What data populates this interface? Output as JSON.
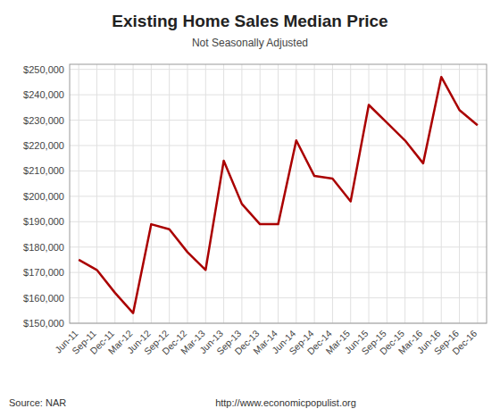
{
  "chart_data": {
    "type": "line",
    "title": "Existing Home Sales Median Price",
    "subtitle": "Not Seasonally Adjusted",
    "annotations": [
      "Source: NAR",
      "http://www.economicpopulist.org"
    ],
    "categories": [
      "Jun-11",
      "Sep-11",
      "Dec-11",
      "Mar-12",
      "Jun-12",
      "Sep-12",
      "Dec-12",
      "Mar-13",
      "Jun-13",
      "Sep-13",
      "Dec-13",
      "Mar-14",
      "Jun-14",
      "Sep-14",
      "Dec-14",
      "Mar-15",
      "Jun-15",
      "Sep-15",
      "Dec-15",
      "Mar-16",
      "Jun-16",
      "Sep-16",
      "Dec-16"
    ],
    "values": [
      175000,
      171000,
      162000,
      154000,
      189000,
      187000,
      178000,
      171000,
      214000,
      197000,
      189000,
      189000,
      222000,
      208000,
      207000,
      198000,
      236000,
      229000,
      222000,
      213000,
      247000,
      234000,
      228000
    ],
    "color": "#AA0000",
    "ylim": [
      150000,
      252000
    ],
    "yticks": [
      {
        "value": 150000,
        "label": "$150,000"
      },
      {
        "value": 160000,
        "label": "$160,000"
      },
      {
        "value": 170000,
        "label": "$170,000"
      },
      {
        "value": 180000,
        "label": "$180,000"
      },
      {
        "value": 190000,
        "label": "$190,000"
      },
      {
        "value": 200000,
        "label": "$200,000"
      },
      {
        "value": 210000,
        "label": "$210,000"
      },
      {
        "value": 220000,
        "label": "$220,000"
      },
      {
        "value": 230000,
        "label": "$230,000"
      },
      {
        "value": 240000,
        "label": "$240,000"
      },
      {
        "value": 250000,
        "label": "$250,000"
      }
    ],
    "grid": true
  }
}
